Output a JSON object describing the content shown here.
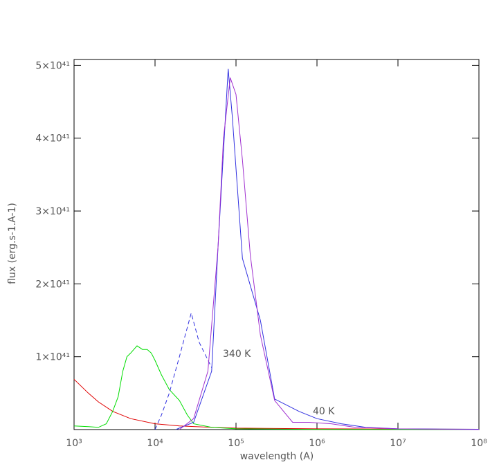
{
  "chart_data": {
    "type": "line",
    "xlabel": "wavelength (A)",
    "ylabel": "flux (erg.s-1.A-1)",
    "xlog": true,
    "xlim": [
      1000,
      100000000
    ],
    "xticks": [
      {
        "value": 1000,
        "label": "10³"
      },
      {
        "value": 10000,
        "label": "10⁴"
      },
      {
        "value": 100000,
        "label": "10⁵"
      },
      {
        "value": 1000000,
        "label": "10⁶"
      },
      {
        "value": 10000000,
        "label": "10⁷"
      },
      {
        "value": 100000000,
        "label": "10⁸"
      }
    ],
    "ylim": [
      0,
      5.08e+41
    ],
    "yticks": [
      {
        "value": 1e+41,
        "label": "1×10⁴¹"
      },
      {
        "value": 2e+41,
        "label": "2×10⁴¹"
      },
      {
        "value": 3e+41,
        "label": "3×10⁴¹"
      },
      {
        "value": 4e+41,
        "label": "4×10⁴¹"
      },
      {
        "value": 5e+41,
        "label": "5×10⁴¹"
      }
    ],
    "series": [
      {
        "color": "#e00000",
        "dash": false,
        "x": [
          1000,
          1500,
          2000,
          3000,
          5000,
          10000,
          20000,
          50000,
          100000,
          1000000,
          100000000
        ],
        "values": [
          6.9e+40,
          5e+40,
          3.8e+40,
          2.5e+40,
          1.5e+40,
          8e+39,
          5e+39,
          3e+39,
          2e+39,
          1e+39,
          5e+38
        ]
      },
      {
        "color": "#00dd00",
        "dash": false,
        "x": [
          1000,
          1500,
          2000,
          2500,
          3000,
          3500,
          4000,
          4500,
          5000,
          6000,
          7000,
          8000,
          9000,
          10000,
          12000,
          15000,
          20000,
          25000,
          30000,
          50000,
          100000,
          1000000,
          100000000
        ],
        "values": [
          5e+39,
          4e+39,
          3e+39,
          8e+39,
          2.5e+40,
          4.5e+40,
          8e+40,
          1e+41,
          1.05e+41,
          1.15e+41,
          1.1e+41,
          1.1e+41,
          1.05e+41,
          9.5e+40,
          7.5e+40,
          5.5e+40,
          4e+40,
          2e+40,
          8e+39,
          3e+39,
          1e+39,
          3e+38,
          0
        ]
      },
      {
        "color": "#3030e0",
        "dash": true,
        "x": [
          10000,
          12000,
          15000,
          20000,
          28000,
          35000,
          50000
        ],
        "values": [
          0,
          2e+40,
          5e+40,
          1e+41,
          1.6e+41,
          1.2e+41,
          8.5e+40
        ]
      },
      {
        "color": "#3030e0",
        "dash": false,
        "x": [
          18000,
          30000,
          50000,
          60000,
          80000,
          90000,
          120000,
          200000,
          300000,
          600000,
          1000000,
          2000000,
          4000000,
          10000000,
          100000000
        ],
        "values": [
          0,
          1e+40,
          8e+40,
          2.5e+41,
          4.95e+41,
          4.3e+41,
          2.35e+41,
          1.5e+41,
          4.2e+40,
          2.5e+40,
          1.5e+40,
          8e+39,
          3e+39,
          1e+39,
          5e+38
        ]
      },
      {
        "color": "#a030d0",
        "dash": false,
        "x": [
          20000,
          30000,
          45000,
          60000,
          70000,
          85000,
          100000,
          120000,
          150000,
          200000,
          300000,
          500000,
          800000,
          1500000,
          3000000,
          10000000,
          100000000
        ],
        "values": [
          0,
          1.5e+40,
          8e+40,
          2.5e+41,
          4e+41,
          4.83e+41,
          4.6e+41,
          3.7e+41,
          2.4e+41,
          1.3e+41,
          4e+40,
          1e+40,
          1e+40,
          8e+39,
          3e+39,
          1e+39,
          0
        ]
      }
    ],
    "annotations": [
      {
        "text": "340 K"
      },
      {
        "text": "40 K"
      }
    ]
  }
}
